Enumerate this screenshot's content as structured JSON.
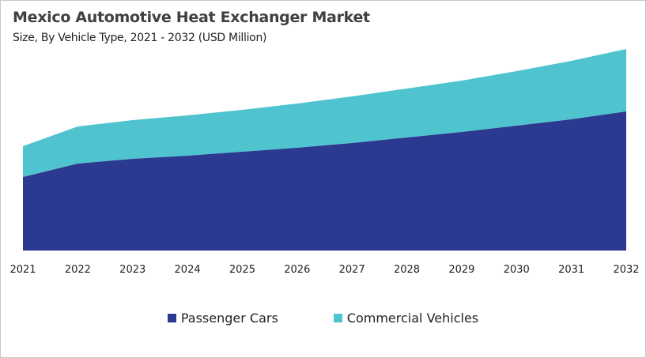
{
  "chart_data": {
    "type": "area",
    "stacked": true,
    "title": "Mexico Automotive Heat Exchanger Market",
    "subtitle": "Size, By Vehicle Type, 2021 - 2032 (USD Million)",
    "xlabel": "",
    "ylabel": "",
    "y_axis_shown": false,
    "grid": false,
    "legend_position": "bottom",
    "categories": [
      "2021",
      "2022",
      "2023",
      "2024",
      "2025",
      "2026",
      "2027",
      "2028",
      "2029",
      "2030",
      "2031",
      "2032"
    ],
    "ylim": [
      0,
      260
    ],
    "series": [
      {
        "name": "Passenger Cars",
        "color": "#2b3990",
        "values": [
          93,
          110,
          116,
          120,
          125,
          130,
          136,
          143,
          150,
          158,
          166,
          176
        ]
      },
      {
        "name": "Commercial Vehicles",
        "color": "#4fc4cf",
        "values": [
          39,
          47,
          49,
          51,
          53,
          56,
          59,
          62,
          65,
          69,
          74,
          79
        ]
      }
    ]
  }
}
